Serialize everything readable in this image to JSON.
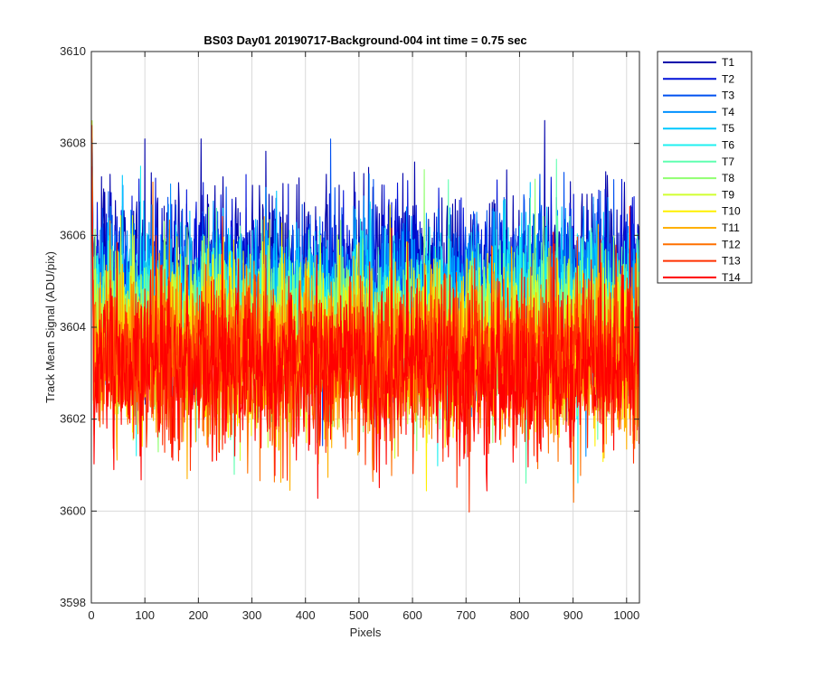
{
  "chart_data": {
    "type": "line",
    "title": "BS03 Day01 20190717-Background-004 int time = 0.75 sec",
    "xlabel": "Pixels",
    "ylabel": "Track Mean Signal (ADU/pix)",
    "xlim": [
      0,
      1024
    ],
    "ylim": [
      3598,
      3610
    ],
    "xticks": [
      0,
      100,
      200,
      300,
      400,
      500,
      600,
      700,
      800,
      900,
      1000
    ],
    "yticks": [
      3598,
      3600,
      3602,
      3604,
      3606,
      3608,
      3610
    ],
    "grid": true,
    "legend_position": "outside-top-right",
    "series": [
      {
        "name": "T1",
        "color": "#0000AA",
        "mean": 3605.3,
        "noise": 0.85,
        "start": 3608.0
      },
      {
        "name": "T2",
        "color": "#0010D8",
        "mean": 3605.0,
        "noise": 0.85,
        "start": 3607.6
      },
      {
        "name": "T3",
        "color": "#0050F0",
        "mean": 3604.8,
        "noise": 0.85,
        "start": 3607.2
      },
      {
        "name": "T4",
        "color": "#0090FF",
        "mean": 3604.6,
        "noise": 0.85,
        "start": 3609.6
      },
      {
        "name": "T5",
        "color": "#00C8FF",
        "mean": 3604.4,
        "noise": 0.85,
        "start": 3609.0
      },
      {
        "name": "T6",
        "color": "#20F0F0",
        "mean": 3604.2,
        "noise": 0.85,
        "start": 3608.5
      },
      {
        "name": "T7",
        "color": "#60FFB0",
        "mean": 3604.1,
        "noise": 0.85,
        "start": 3608.2
      },
      {
        "name": "T8",
        "color": "#90FF70",
        "mean": 3603.9,
        "noise": 0.85,
        "start": 3608.0
      },
      {
        "name": "T9",
        "color": "#D0FF30",
        "mean": 3603.7,
        "noise": 0.85,
        "start": 3608.8
      },
      {
        "name": "T10",
        "color": "#FFF000",
        "mean": 3603.5,
        "noise": 0.85,
        "start": 3608.6
      },
      {
        "name": "T11",
        "color": "#FFB000",
        "mean": 3603.4,
        "noise": 0.9,
        "start": 3608.0
      },
      {
        "name": "T12",
        "color": "#FF7000",
        "mean": 3603.3,
        "noise": 0.9,
        "start": 3607.8
      },
      {
        "name": "T13",
        "color": "#FF3000",
        "mean": 3603.2,
        "noise": 0.9,
        "start": 3608.4
      },
      {
        "name": "T14",
        "color": "#FF0000",
        "mean": 3603.1,
        "noise": 0.9,
        "start": 3607.5
      }
    ]
  }
}
